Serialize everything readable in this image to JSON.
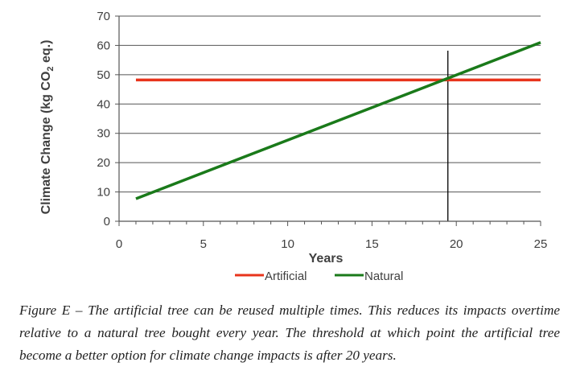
{
  "chart_data": {
    "type": "line",
    "title": "",
    "xlabel": "Years",
    "ylabel": "Climate Change (kg CO2 eq.)",
    "ylabel_parts": {
      "before": "Climate Change (kg CO",
      "sub": "2",
      "after": " eq.)"
    },
    "xlim": [
      0,
      25
    ],
    "ylim": [
      0,
      70
    ],
    "x_ticks": [
      0,
      5,
      10,
      15,
      20,
      25
    ],
    "y_ticks": [
      0,
      10,
      20,
      30,
      40,
      50,
      60,
      70
    ],
    "grid": "horizontal",
    "threshold_x": 19.5,
    "series": [
      {
        "name": "Artificial",
        "color": "#e8341c",
        "x": [
          1,
          25
        ],
        "y": [
          48.2,
          48.2
        ]
      },
      {
        "name": "Natural",
        "color": "#1a7a1a",
        "x": [
          1,
          25
        ],
        "y": [
          7.7,
          61
        ]
      }
    ],
    "legend_position": "bottom-center"
  },
  "caption": {
    "text": "Figure E – The artificial tree can be reused multiple times. This reduces its impacts overtime relative to a natural tree bought every year. The threshold at which point the artificial tree become a better option for climate change impacts is after 20 years."
  }
}
